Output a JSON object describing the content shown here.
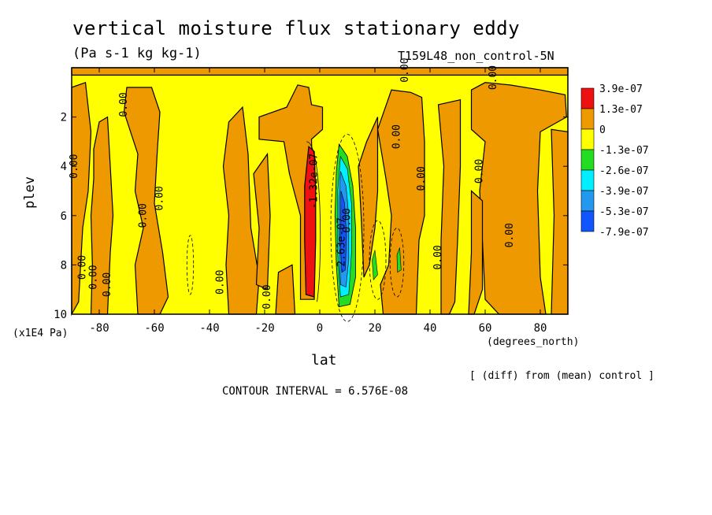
{
  "chart_data": {
    "type": "heatmap",
    "title": "vertical moisture flux stationary eddy",
    "units": "(Pa s-1 kg kg-1)",
    "run_label": "T159L48_non_control-5N",
    "xlabel": "lat",
    "x_unit_label": "(degrees_north)",
    "ylabel": "plev",
    "y_unit_label": "(x1E4 Pa)",
    "xlim": [
      -90,
      90
    ],
    "ylim": [
      10,
      0
    ],
    "x_ticks": [
      -80,
      -60,
      -40,
      -20,
      0,
      20,
      40,
      60,
      80
    ],
    "x_tick_labels": [
      "-80",
      "-60",
      "-40",
      "-20",
      "0",
      "20",
      "40",
      "60",
      "80"
    ],
    "y_ticks": [
      2,
      4,
      6,
      8,
      10
    ],
    "y_tick_labels": [
      "2",
      "4",
      "6",
      "8",
      "10"
    ],
    "diff_note": "[ (diff) from (mean) control ]",
    "contour_interval": "CONTOUR INTERVAL = 6.576E-08",
    "legend": {
      "placement": "right",
      "labels": [
        "3.9e-07",
        "1.3e-07",
        "0",
        "-1.3e-07",
        "-2.6e-07",
        "-3.9e-07",
        "-5.3e-07",
        "-7.9e-07"
      ],
      "colors": [
        "#ee1111",
        "#ee9900",
        "#ffff00",
        "#22dd22",
        "#00eeff",
        "#2299ee",
        "#1155ff"
      ]
    },
    "contour_labels": [
      {
        "text": "0.00",
        "lat": -88,
        "plev": 4.0
      },
      {
        "text": "0.00",
        "lat": -70,
        "plev": 1.5
      },
      {
        "text": "0.00",
        "lat": -85,
        "plev": 8.1
      },
      {
        "text": "0.00",
        "lat": -81,
        "plev": 8.5
      },
      {
        "text": "0.00",
        "lat": -76,
        "plev": 8.8
      },
      {
        "text": "0.00",
        "lat": -63,
        "plev": 6.0
      },
      {
        "text": "0.00",
        "lat": -57,
        "plev": 5.3
      },
      {
        "text": "0.00",
        "lat": -35,
        "plev": 8.7
      },
      {
        "text": "0.00",
        "lat": -18,
        "plev": 9.3
      },
      {
        "text": "-1.32e-07",
        "lat": -1,
        "plev": 4.6
      },
      {
        "text": "-2.63e-07",
        "lat": 9,
        "plev": 7.2
      },
      {
        "text": "0.00",
        "lat": 11,
        "plev": 6.2
      },
      {
        "text": "0.00",
        "lat": 29,
        "plev": 2.8
      },
      {
        "text": "0.00",
        "lat": 38,
        "plev": 4.5
      },
      {
        "text": "0.00",
        "lat": 44,
        "plev": 7.7
      },
      {
        "text": "0.00",
        "lat": 59,
        "plev": 4.2
      },
      {
        "text": "0.00",
        "lat": 70,
        "plev": 6.8
      },
      {
        "text": "0.00",
        "lat": 64,
        "plev": 0.4
      },
      {
        "text": "0.00",
        "lat": 32,
        "plev": 0.1
      }
    ],
    "fields": [
      {
        "level": "positive",
        "color": "#ee9900",
        "regions": "broad bands of positive flux at -85 to -75, -70 to -60, -35 to -25, -15 to 0, 15 to 35, 45 to 55, 62 to 80"
      },
      {
        "level": "max",
        "color": "#ee1111",
        "lat_range": [
          -6,
          -1
        ],
        "plev_range": [
          3.2,
          9.3
        ]
      },
      {
        "level": "min",
        "color": "#1155ff",
        "lat_range": [
          6,
          14
        ],
        "plev_range": [
          3.0,
          9.6
        ]
      }
    ]
  }
}
